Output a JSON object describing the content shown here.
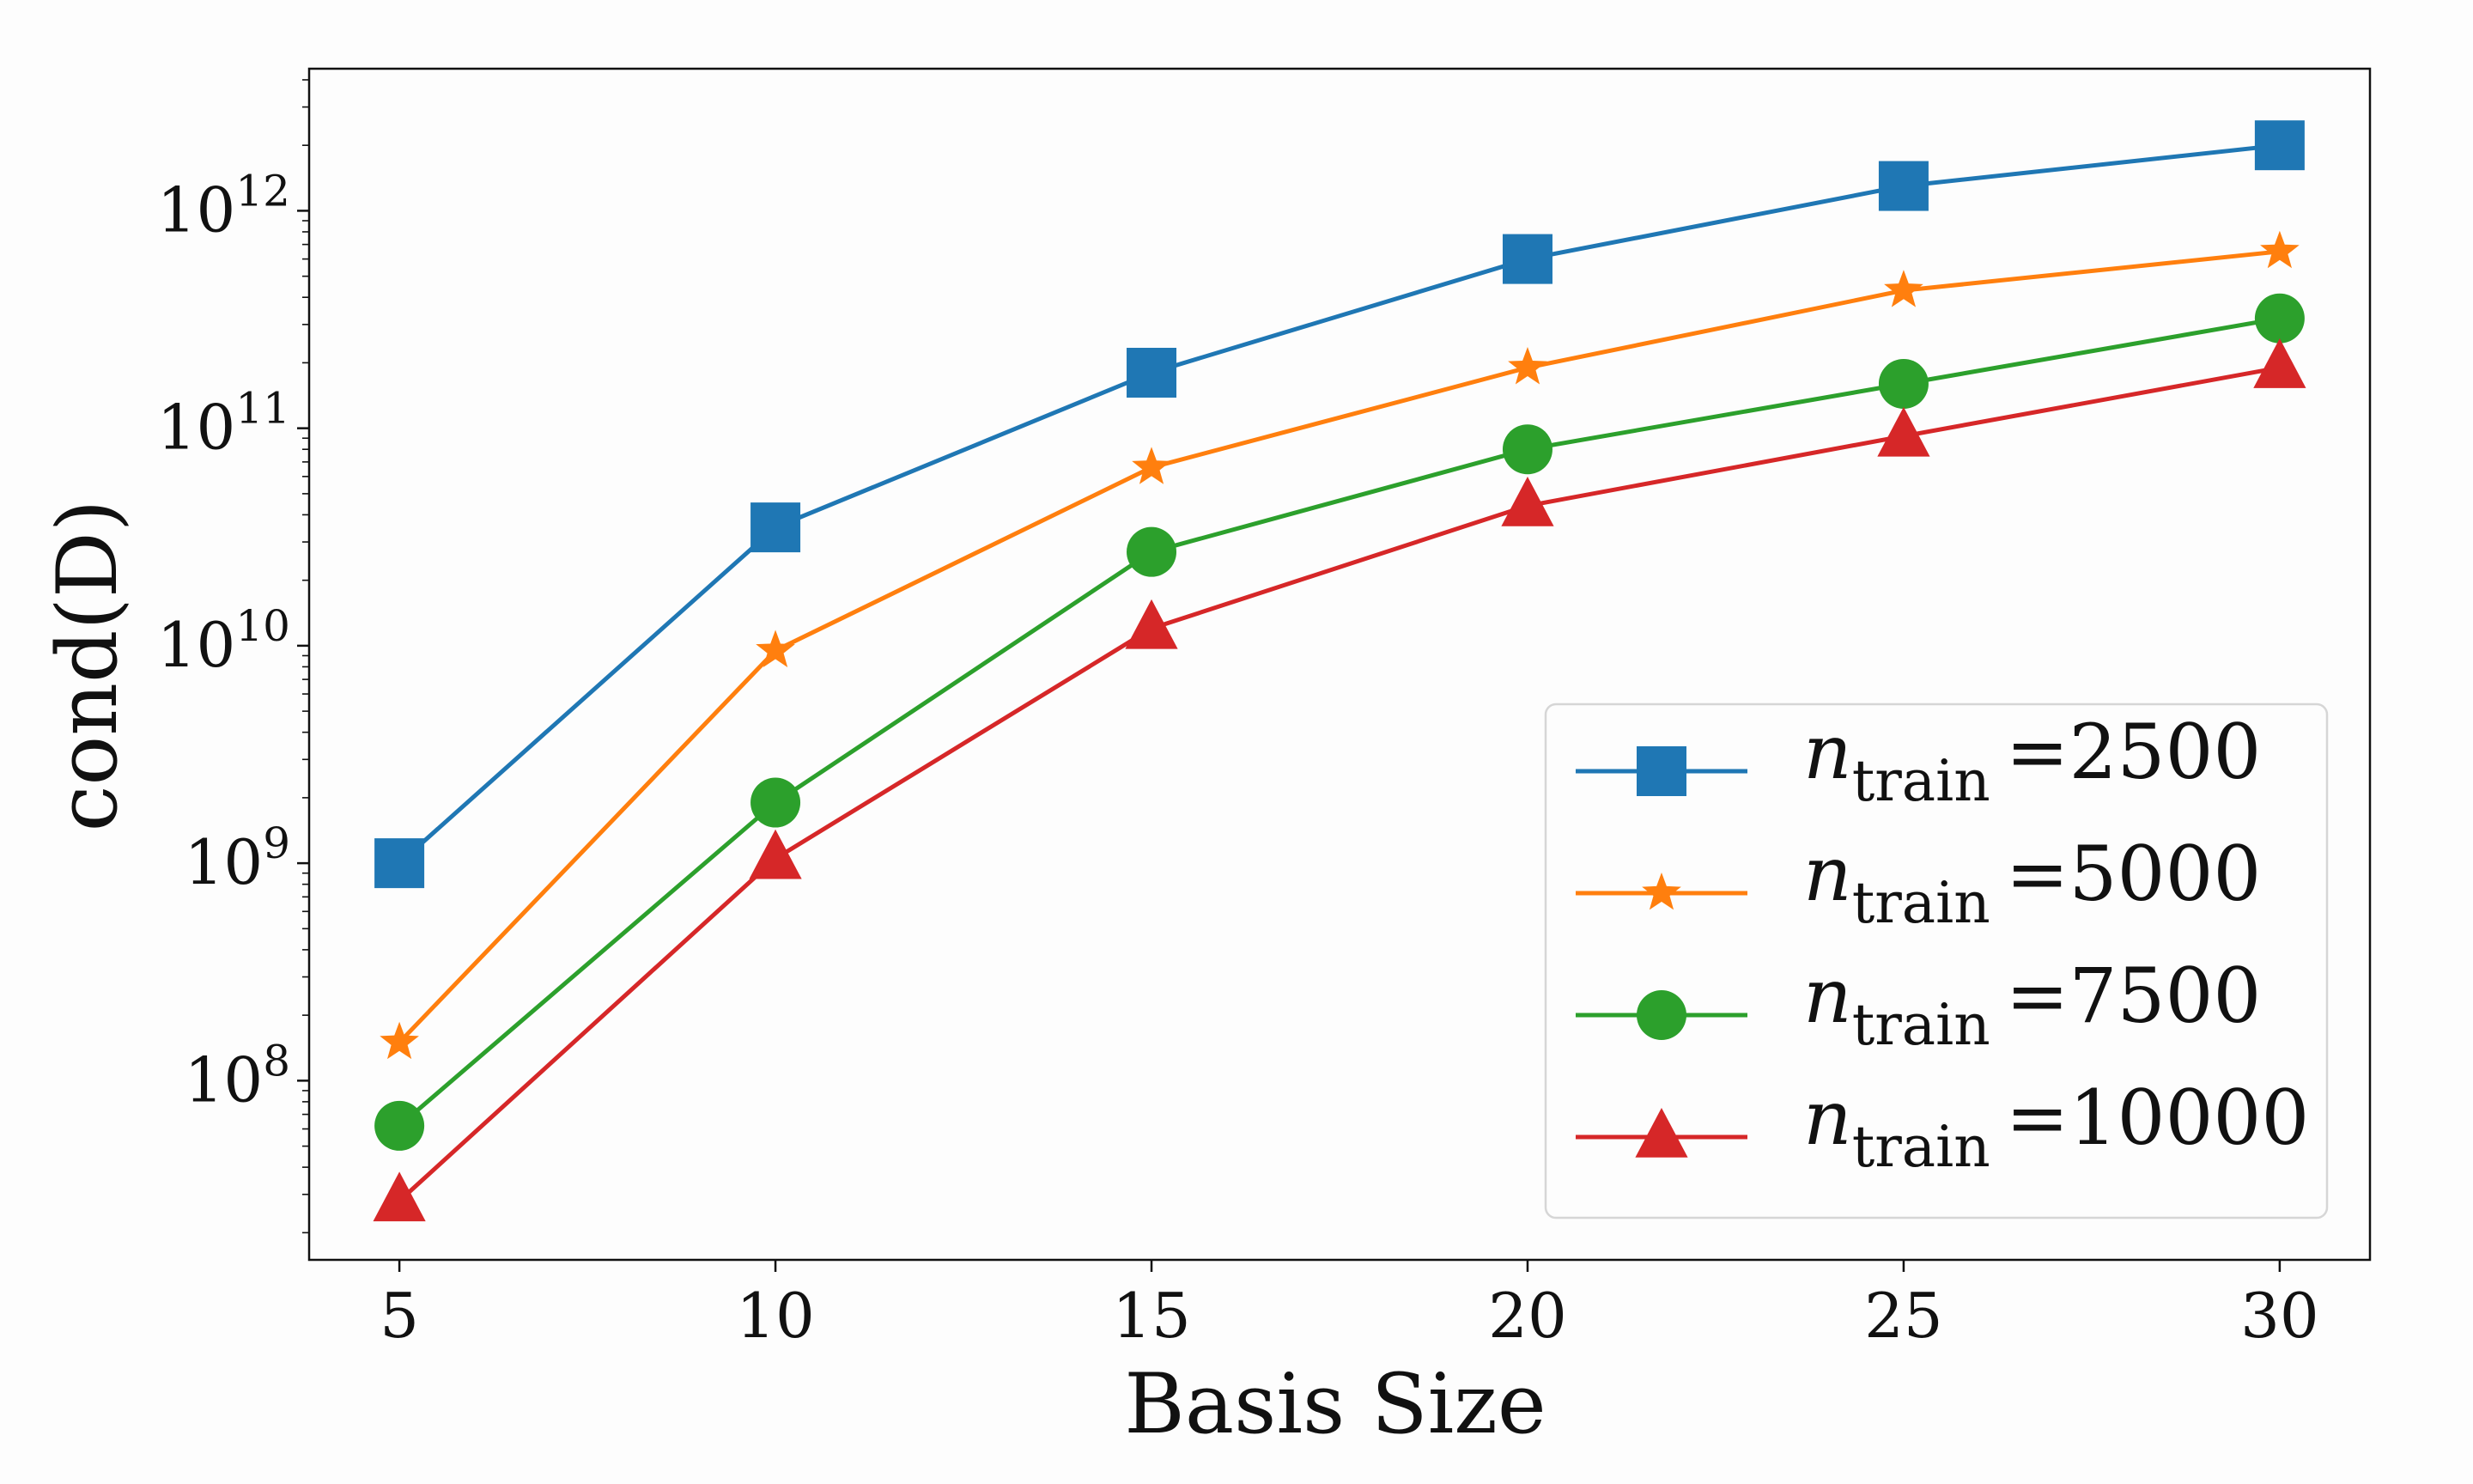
{
  "chart_data": {
    "type": "line",
    "title": "",
    "xlabel": "Basis Size",
    "ylabel": "cond(D)",
    "x": [
      5,
      10,
      15,
      20,
      25,
      30
    ],
    "xlim": [
      3.8,
      31.2
    ],
    "ylim": [
      15000000,
      4500000000000
    ],
    "yscale": "log",
    "x_ticks": [
      5,
      10,
      15,
      20,
      25,
      30
    ],
    "y_ticks": [
      100000000,
      1000000000,
      10000000000,
      100000000000,
      1000000000000
    ],
    "y_tick_labels": [
      {
        "base": "10",
        "exp": "8"
      },
      {
        "base": "10",
        "exp": "9"
      },
      {
        "base": "10",
        "exp": "10"
      },
      {
        "base": "10",
        "exp": "11"
      },
      {
        "base": "10",
        "exp": "12"
      }
    ],
    "grid": false,
    "legend_position": "lower-right",
    "series": [
      {
        "name": "n_train =2500",
        "legend_var": "n",
        "legend_sub": "train",
        "legend_value": "=2500",
        "color": "#1f77b4",
        "marker": "square",
        "values": [
          1000000000,
          35000000000,
          180000000000,
          600000000000,
          1300000000000,
          2000000000000
        ]
      },
      {
        "name": "n_train =5000",
        "legend_var": "n",
        "legend_sub": "train",
        "legend_value": "=5000",
        "color": "#ff7f0e",
        "marker": "star",
        "values": [
          150000000,
          9500000000,
          66000000000,
          190000000000,
          430000000000,
          650000000000
        ]
      },
      {
        "name": "n_train =7500",
        "legend_var": "n",
        "legend_sub": "train",
        "legend_value": "=7500",
        "color": "#2ca02c",
        "marker": "circle",
        "values": [
          62000000,
          1900000000,
          27000000000,
          80000000000,
          160000000000,
          320000000000
        ]
      },
      {
        "name": "n_train =10000",
        "legend_var": "n",
        "legend_sub": "train",
        "legend_value": "=10000",
        "color": "#d62728",
        "marker": "triangle",
        "values": [
          28000000,
          1050000000,
          12000000000,
          44000000000,
          92000000000,
          190000000000
        ]
      }
    ]
  }
}
